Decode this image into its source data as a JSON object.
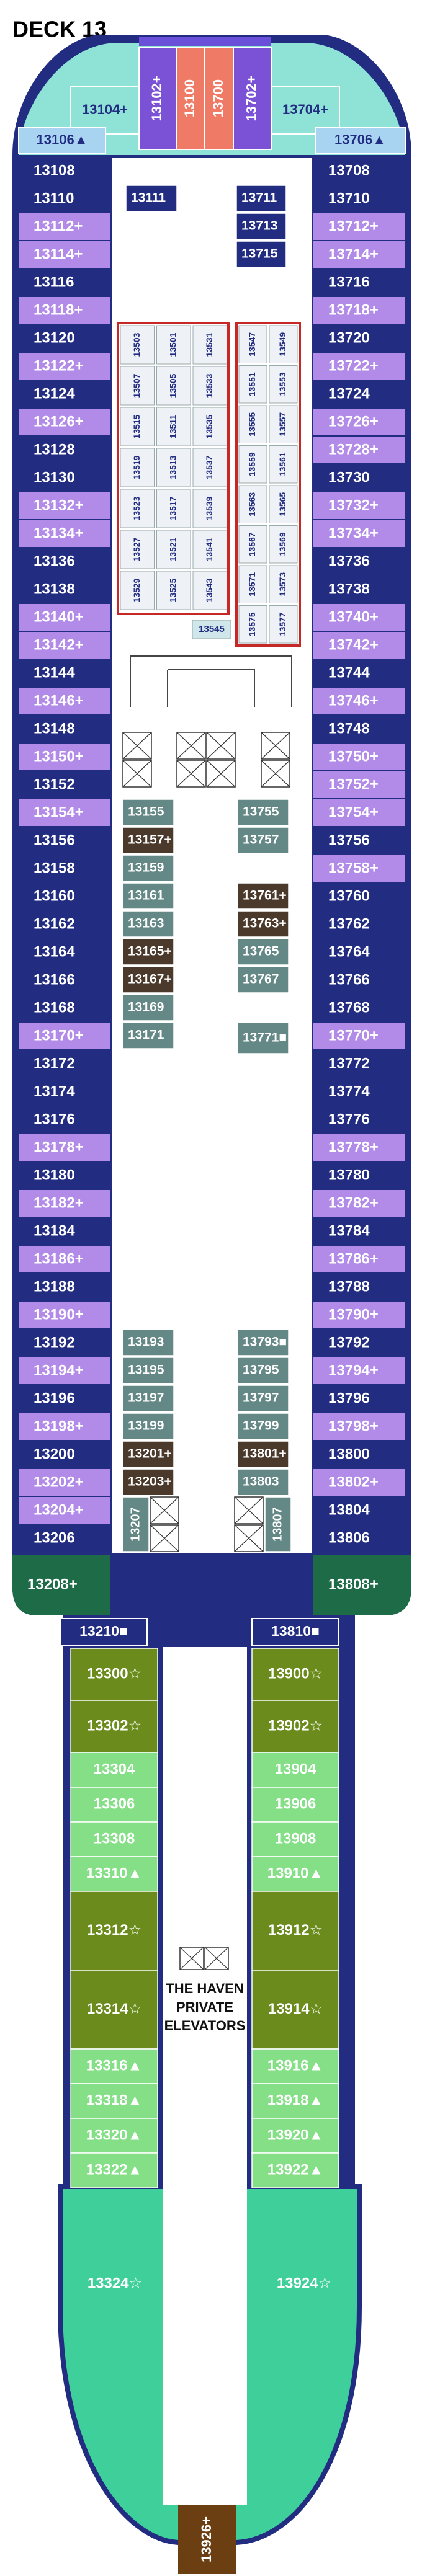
{
  "header": {
    "title": "DECK 13"
  },
  "bow_cabins": [
    "13104+",
    "13102+",
    "13100",
    "13700",
    "13702+",
    "13704+",
    "13106▲",
    "13706▲"
  ],
  "port_cabins": [
    "13108",
    "13110",
    "13112+",
    "13114+",
    "13116",
    "13118+",
    "13120",
    "13122+",
    "13124",
    "13126+",
    "13128",
    "13130",
    "13132+",
    "13134+",
    "13136",
    "13138",
    "13140+",
    "13142+",
    "13144",
    "13146+",
    "13148",
    "13150+",
    "13152",
    "13154+",
    "13156",
    "13158",
    "13160",
    "13162",
    "13164",
    "13166",
    "13168",
    "13170+",
    "13172",
    "13174",
    "13176",
    "13178+",
    "13180",
    "13182+",
    "13184",
    "13186+",
    "13188",
    "13190+",
    "13192",
    "13194+",
    "13196",
    "13198+",
    "13200",
    "13202+",
    "13204+",
    "13206"
  ],
  "starboard_cabins": [
    "13708",
    "13710",
    "13712+",
    "13714+",
    "13716",
    "13718+",
    "13720",
    "13722+",
    "13724",
    "13726+",
    "13728+",
    "13730",
    "13732+",
    "13734+",
    "13736",
    "13738",
    "13740+",
    "13742+",
    "13744",
    "13746+",
    "13748",
    "13750+",
    "13752+",
    "13754+",
    "13756",
    "13758+",
    "13760",
    "13762",
    "13764",
    "13766",
    "13768",
    "13770+",
    "13772",
    "13774",
    "13776",
    "13778+",
    "13780",
    "13782+",
    "13784",
    "13786+",
    "13788",
    "13790+",
    "13792",
    "13794+",
    "13796",
    "13798+",
    "13800",
    "13802+",
    "13804",
    "13806"
  ],
  "forward_inner_port": [
    "13111"
  ],
  "forward_inner_starboard": [
    "13711",
    "13713",
    "13715"
  ],
  "interior_port_columns": [
    [
      "13503",
      "13507",
      "13515",
      "13519",
      "13523",
      "13527",
      "13529"
    ],
    [
      "13501",
      "13505",
      "13511",
      "13513",
      "13517",
      "13521",
      "13525"
    ],
    [
      "13531",
      "13533",
      "13535",
      "13537",
      "13539",
      "13541",
      "13543"
    ]
  ],
  "interior_starboard_columns": [
    [
      "13547",
      "13551",
      "13555",
      "13559",
      "13563",
      "13567",
      "13571",
      "13575"
    ],
    [
      "13549",
      "13553",
      "13557",
      "13561",
      "13565",
      "13569",
      "13573",
      "13577"
    ]
  ],
  "interior_center": "13545",
  "mid_port": [
    "13155",
    "13157+",
    "13159",
    "13161",
    "13163",
    "13165+",
    "13167+",
    "13169",
    "13171"
  ],
  "mid_starboard": [
    "13755",
    "13757",
    "13761+",
    "13763+",
    "13765",
    "13767",
    "13771■"
  ],
  "aft_port": [
    "13193",
    "13195",
    "13197",
    "13199",
    "13201+",
    "13203+",
    "13207"
  ],
  "aft_starboard": [
    "13793■",
    "13795",
    "13797",
    "13799",
    "13801+",
    "13803",
    "13807"
  ],
  "aft_corners": [
    "13208+",
    "13808+"
  ],
  "suites_forward": [
    "13210■",
    "13810■"
  ],
  "haven_port": [
    "13300☆",
    "13302☆",
    "13304",
    "13306",
    "13308",
    "13310▲",
    "13312☆",
    "13314☆",
    "13316▲",
    "13318▲",
    "13320▲",
    "13322▲"
  ],
  "haven_starboard": [
    "13900☆",
    "13902☆",
    "13904",
    "13906",
    "13908",
    "13910▲",
    "13912☆",
    "13914☆",
    "13916▲",
    "13918▲",
    "13920▲",
    "13922▲"
  ],
  "haven_aft": [
    "13324☆",
    "13924☆",
    "13926+"
  ],
  "haven_elevators": [
    "THE HAVEN",
    "PRIVATE",
    "ELEVATORS"
  ]
}
